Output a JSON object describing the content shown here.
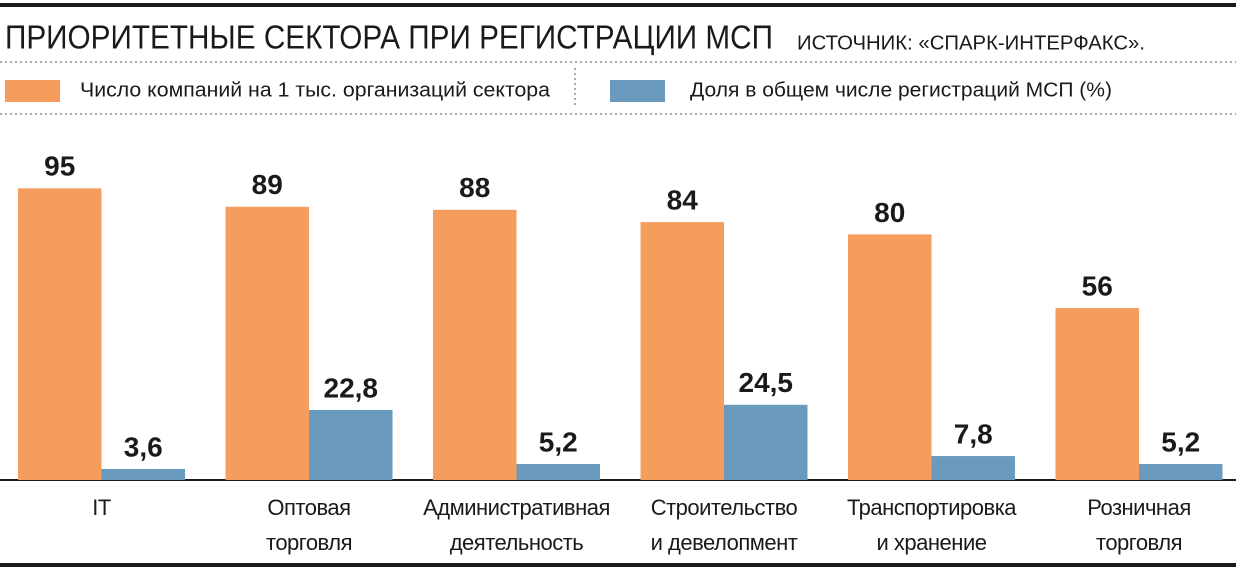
{
  "chart_data": {
    "type": "bar",
    "title": "ПРИОРИТЕТНЫЕ СЕКТОРА ПРИ РЕГИСТРАЦИИ МСП",
    "source": "ИСТОЧНИК: «СПАРК-ИНТЕРФАКС».",
    "categories": [
      "IT",
      "Оптовая\nторговля",
      "Административная\nдеятельность",
      "Строительство\nи девелопмент",
      "Транспортировка\nи хранение",
      "Розничная\nторговля"
    ],
    "series": [
      {
        "name": "Число компаний на 1 тыс. организаций сектора",
        "color": "#f59d5c",
        "values": [
          95,
          89,
          88,
          84,
          80,
          56
        ]
      },
      {
        "name": "Доля в общем числе регистраций МСП (%)",
        "color": "#6a9bbf",
        "values": [
          3.6,
          22.8,
          5.2,
          24.5,
          7.8,
          5.2
        ],
        "value_labels": [
          "3,6",
          "22,8",
          "5,2",
          "24,5",
          "7,8",
          "5,2"
        ]
      }
    ]
  }
}
